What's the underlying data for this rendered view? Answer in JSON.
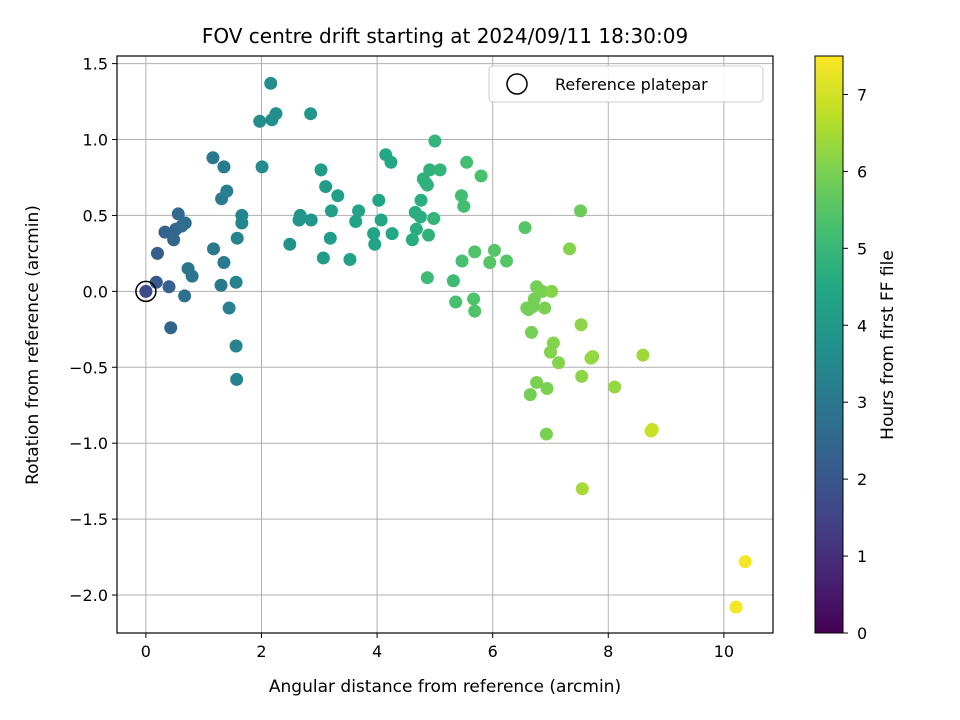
{
  "chart_data": {
    "type": "scatter",
    "title": "FOV centre drift starting at 2024/09/11 18:30:09",
    "xlabel": "Angular distance from reference (arcmin)",
    "ylabel": "Rotation from reference (arcmin)",
    "xlim": [
      -0.5,
      10.85
    ],
    "ylim": [
      -2.25,
      1.55
    ],
    "xticks": [
      0,
      2,
      4,
      6,
      8,
      10
    ],
    "yticks": [
      -2.0,
      -1.5,
      -1.0,
      -0.5,
      0.0,
      0.5,
      1.0,
      1.5
    ],
    "xtick_labels": [
      "0",
      "2",
      "4",
      "6",
      "8",
      "10"
    ],
    "ytick_labels": [
      "−2.0",
      "−1.5",
      "−1.0",
      "−0.5",
      "0.0",
      "0.5",
      "1.0",
      "1.5"
    ],
    "grid": true,
    "legend": {
      "placement": "top-right",
      "label": "Reference platepar"
    },
    "reference_point": {
      "x": 0.0,
      "y": 0.0
    },
    "colorbar": {
      "label": "Hours from first FF file",
      "range": [
        0,
        7.5
      ],
      "ticks": [
        0,
        1,
        2,
        3,
        4,
        5,
        6,
        7
      ],
      "tick_labels": [
        "0",
        "1",
        "2",
        "3",
        "4",
        "5",
        "6",
        "7"
      ],
      "colormap": "viridis"
    },
    "points": [
      [
        0.0,
        0.0,
        1.7
      ],
      [
        0.18,
        0.06,
        2.1
      ],
      [
        0.2,
        0.25,
        2.2
      ],
      [
        0.33,
        0.39,
        2.3
      ],
      [
        0.4,
        0.03,
        2.3
      ],
      [
        0.43,
        -0.24,
        2.4
      ],
      [
        0.48,
        0.34,
        2.5
      ],
      [
        0.52,
        0.41,
        2.5
      ],
      [
        0.56,
        0.51,
        2.6
      ],
      [
        0.62,
        0.43,
        2.6
      ],
      [
        0.68,
        0.45,
        2.7
      ],
      [
        0.67,
        -0.03,
        2.8
      ],
      [
        0.73,
        0.15,
        2.9
      ],
      [
        0.8,
        0.1,
        2.9
      ],
      [
        1.16,
        0.88,
        3.0
      ],
      [
        1.17,
        0.28,
        3.0
      ],
      [
        1.3,
        0.04,
        3.0
      ],
      [
        1.31,
        0.61,
        3.1
      ],
      [
        1.35,
        0.82,
        3.1
      ],
      [
        1.35,
        0.19,
        3.1
      ],
      [
        1.4,
        0.66,
        3.2
      ],
      [
        1.44,
        -0.11,
        3.2
      ],
      [
        1.56,
        0.06,
        3.3
      ],
      [
        1.56,
        -0.36,
        3.3
      ],
      [
        1.57,
        -0.58,
        3.3
      ],
      [
        1.58,
        0.35,
        3.3
      ],
      [
        1.66,
        0.5,
        3.4
      ],
      [
        1.66,
        0.45,
        3.4
      ],
      [
        1.97,
        1.12,
        3.6
      ],
      [
        2.01,
        0.82,
        3.6
      ],
      [
        2.16,
        1.37,
        3.7
      ],
      [
        2.18,
        1.13,
        3.7
      ],
      [
        2.25,
        1.17,
        3.7
      ],
      [
        2.49,
        0.31,
        3.8
      ],
      [
        2.65,
        0.47,
        3.9
      ],
      [
        2.67,
        0.5,
        3.9
      ],
      [
        2.85,
        1.17,
        3.9
      ],
      [
        2.86,
        0.47,
        3.9
      ],
      [
        3.03,
        0.8,
        4.1
      ],
      [
        3.07,
        0.22,
        4.1
      ],
      [
        3.11,
        0.69,
        4.1
      ],
      [
        3.19,
        0.35,
        4.1
      ],
      [
        3.21,
        0.53,
        4.2
      ],
      [
        3.32,
        0.63,
        4.2
      ],
      [
        3.53,
        0.21,
        4.3
      ],
      [
        3.63,
        0.46,
        4.3
      ],
      [
        3.68,
        0.53,
        4.3
      ],
      [
        3.94,
        0.38,
        4.4
      ],
      [
        3.96,
        0.31,
        4.4
      ],
      [
        4.03,
        0.6,
        4.4
      ],
      [
        4.07,
        0.47,
        4.4
      ],
      [
        4.15,
        0.9,
        4.5
      ],
      [
        4.24,
        0.85,
        4.5
      ],
      [
        4.26,
        0.38,
        4.5
      ],
      [
        4.61,
        0.34,
        4.6
      ],
      [
        4.66,
        0.52,
        4.7
      ],
      [
        4.68,
        0.41,
        4.7
      ],
      [
        4.75,
        0.49,
        4.7
      ],
      [
        4.76,
        0.6,
        4.7
      ],
      [
        4.8,
        0.74,
        4.8
      ],
      [
        4.85,
        0.71,
        4.8
      ],
      [
        4.87,
        0.7,
        4.8
      ],
      [
        4.89,
        0.37,
        4.8
      ],
      [
        4.91,
        0.8,
        4.8
      ],
      [
        4.98,
        0.48,
        4.9
      ],
      [
        5.0,
        0.99,
        4.9
      ],
      [
        5.09,
        0.8,
        4.9
      ],
      [
        4.87,
        0.09,
        5.1
      ],
      [
        5.32,
        0.07,
        5.1
      ],
      [
        5.36,
        -0.07,
        5.3
      ],
      [
        5.46,
        0.63,
        5.2
      ],
      [
        5.47,
        0.2,
        5.3
      ],
      [
        5.5,
        0.56,
        5.2
      ],
      [
        5.55,
        0.85,
        5.2
      ],
      [
        5.67,
        -0.05,
        5.4
      ],
      [
        5.69,
        0.26,
        5.4
      ],
      [
        5.69,
        -0.13,
        5.4
      ],
      [
        5.8,
        0.76,
        5.3
      ],
      [
        5.95,
        0.19,
        5.5
      ],
      [
        6.03,
        0.27,
        5.5
      ],
      [
        6.24,
        0.2,
        5.5
      ],
      [
        6.56,
        0.42,
        5.5
      ],
      [
        6.59,
        -0.11,
        5.9
      ],
      [
        6.62,
        -0.12,
        5.9
      ],
      [
        6.65,
        -0.68,
        5.9
      ],
      [
        6.67,
        -0.27,
        5.9
      ],
      [
        6.7,
        -0.1,
        5.9
      ],
      [
        6.72,
        -0.05,
        5.9
      ],
      [
        6.76,
        0.03,
        5.9
      ],
      [
        6.76,
        -0.6,
        6.0
      ],
      [
        6.86,
        0.0,
        6.0
      ],
      [
        6.9,
        -0.11,
        6.0
      ],
      [
        6.93,
        -0.94,
        6.0
      ],
      [
        6.94,
        -0.64,
        6.0
      ],
      [
        7.0,
        -0.4,
        6.1
      ],
      [
        7.02,
        0.0,
        6.1
      ],
      [
        7.05,
        -0.34,
        6.1
      ],
      [
        7.14,
        -0.47,
        6.1
      ],
      [
        7.33,
        0.28,
        6.1
      ],
      [
        7.52,
        0.53,
        5.8
      ],
      [
        7.53,
        -0.22,
        6.2
      ],
      [
        7.54,
        -0.56,
        6.2
      ],
      [
        7.55,
        -1.3,
        6.5
      ],
      [
        7.7,
        -0.44,
        6.3
      ],
      [
        7.73,
        -0.43,
        6.3
      ],
      [
        8.11,
        -0.63,
        6.3
      ],
      [
        8.6,
        -0.42,
        6.4
      ],
      [
        8.76,
        -0.91,
        6.8
      ],
      [
        8.74,
        -0.92,
        6.9
      ],
      [
        10.21,
        -2.08,
        7.4
      ],
      [
        10.37,
        -1.78,
        7.4
      ]
    ]
  }
}
